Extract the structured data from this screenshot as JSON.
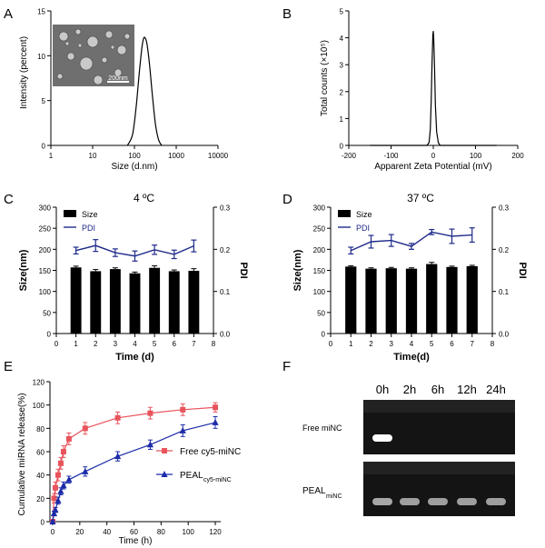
{
  "panels": {
    "A": "A",
    "B": "B",
    "C": "C",
    "D": "D",
    "E": "E",
    "F": "F"
  },
  "colors": {
    "navy": "#1f2a8a",
    "red": "#e8545c",
    "blue": "#1c2ba8",
    "bar": "#000000",
    "gel_bg": "#141414"
  },
  "inset": {
    "scale_label": "200nm"
  },
  "chart_data": [
    {
      "panel": "A",
      "type": "line",
      "xlabel": "Size (d.nm)",
      "ylabel": "Intensity (percent)",
      "xscale": "log",
      "xlim": [
        1,
        10000
      ],
      "ylim": [
        0,
        15
      ],
      "xticks": [
        1,
        10,
        100,
        1000,
        10000
      ],
      "xtick_labels": [
        "1",
        "10",
        "100",
        "1000",
        "10000"
      ],
      "yticks": [
        0,
        5,
        10,
        15
      ],
      "ytick_labels": [
        "0",
        "5",
        "10",
        "15"
      ],
      "series": [
        {
          "x": [
            68,
            90,
            110,
            130,
            150,
            165,
            180,
            200,
            230,
            270,
            320,
            380,
            450
          ],
          "y": [
            0,
            1.2,
            4.3,
            8.0,
            10.8,
            11.9,
            12.0,
            11.3,
            9.0,
            5.5,
            2.3,
            0.6,
            0
          ]
        }
      ]
    },
    {
      "panel": "B",
      "type": "line",
      "xlabel": "Apparent Zeta Potential (mV)",
      "ylabel": "Total counts (×10⁵)",
      "xlim": [
        -200,
        200
      ],
      "ylim": [
        0,
        5
      ],
      "xticks": [
        -200,
        -100,
        0,
        100,
        200
      ],
      "xtick_labels": [
        "-200",
        "-100",
        "0",
        "100",
        "200"
      ],
      "yticks": [
        0,
        1,
        2,
        3,
        4,
        5
      ],
      "ytick_labels": [
        "0",
        "1",
        "2",
        "3",
        "4",
        "5"
      ],
      "series": [
        {
          "x": [
            -150,
            -15,
            -10,
            -7,
            -5,
            -3,
            -1,
            0,
            1,
            3,
            5,
            8,
            12,
            16,
            150
          ],
          "y": [
            0,
            0,
            0.1,
            0.6,
            1.6,
            3.0,
            4.1,
            4.25,
            4.0,
            2.9,
            1.5,
            0.5,
            0.1,
            0,
            0
          ]
        }
      ]
    },
    {
      "panel": "C",
      "type": "bar",
      "title": "4 ºC",
      "xlabel": "Time (d)",
      "ylabel": "Size(nm)",
      "y2label": "PDI",
      "xlim": [
        0,
        8
      ],
      "ylim": [
        0,
        300
      ],
      "y2lim": [
        0,
        0.3
      ],
      "xticks": [
        0,
        1,
        2,
        3,
        4,
        5,
        6,
        7,
        8
      ],
      "xtick_labels": [
        "0",
        "1",
        "2",
        "3",
        "4",
        "5",
        "6",
        "7",
        "8"
      ],
      "yticks": [
        0,
        50,
        100,
        150,
        200,
        250,
        300
      ],
      "ytick_labels": [
        "0",
        "50",
        "100",
        "150",
        "200",
        "250",
        "300"
      ],
      "y2ticks": [
        0,
        0.1,
        0.2,
        0.3
      ],
      "y2tick_labels": [
        "0.0",
        "0.1",
        "0.2",
        "0.3"
      ],
      "legend": [
        "Size",
        "PDI"
      ],
      "x": [
        1,
        2,
        3,
        4,
        5,
        6,
        7
      ],
      "size": [
        157,
        148,
        153,
        143,
        156,
        148,
        149
      ],
      "size_err": [
        3,
        4,
        3,
        3,
        5,
        3,
        5
      ],
      "pdi": [
        0.197,
        0.209,
        0.192,
        0.184,
        0.199,
        0.188,
        0.208
      ],
      "pdi_err": [
        0.008,
        0.014,
        0.009,
        0.012,
        0.011,
        0.01,
        0.014
      ]
    },
    {
      "panel": "D",
      "type": "bar",
      "title": "37 ºC",
      "xlabel": "Time(d)",
      "ylabel": "Size(nm)",
      "y2label": "PDI",
      "xlim": [
        0,
        8
      ],
      "ylim": [
        0,
        300
      ],
      "y2lim": [
        0,
        0.3
      ],
      "xticks": [
        0,
        1,
        2,
        3,
        4,
        5,
        6,
        7,
        8
      ],
      "xtick_labels": [
        "0",
        "1",
        "2",
        "3",
        "4",
        "5",
        "6",
        "7",
        "8"
      ],
      "yticks": [
        0,
        50,
        100,
        150,
        200,
        250,
        300
      ],
      "ytick_labels": [
        "0",
        "50",
        "100",
        "150",
        "200",
        "250",
        "300"
      ],
      "y2ticks": [
        0,
        0.1,
        0.2,
        0.3
      ],
      "y2tick_labels": [
        "0.0",
        "0.1",
        "0.2",
        "0.3"
      ],
      "legend": [
        "Size",
        "PDI"
      ],
      "x": [
        1,
        2,
        3,
        4,
        5,
        6,
        7
      ],
      "size": [
        159,
        154,
        155,
        154,
        165,
        158,
        160
      ],
      "size_err": [
        2,
        2,
        2,
        2,
        4,
        2,
        2
      ],
      "pdi": [
        0.197,
        0.218,
        0.221,
        0.207,
        0.241,
        0.231,
        0.234
      ],
      "pdi_err": [
        0.008,
        0.015,
        0.014,
        0.007,
        0.006,
        0.017,
        0.017
      ]
    },
    {
      "panel": "E",
      "type": "line",
      "xlabel": "Time (h)",
      "ylabel": "Cumulative miRNA release(%)",
      "xlim": [
        -2,
        124
      ],
      "ylim": [
        0,
        120
      ],
      "xticks": [
        0,
        20,
        40,
        60,
        80,
        100,
        120
      ],
      "xtick_labels": [
        "0",
        "20",
        "40",
        "60",
        "80",
        "100",
        "120"
      ],
      "yticks": [
        0,
        20,
        40,
        60,
        80,
        100,
        120
      ],
      "ytick_labels": [
        "0",
        "20",
        "40",
        "60",
        "80",
        "100",
        "120"
      ],
      "series": [
        {
          "name": "Free  cy5-miNC",
          "marker": "square",
          "color": "#e8545c",
          "x": [
            0,
            1,
            2,
            4,
            6,
            8,
            12,
            24,
            48,
            72,
            96,
            120
          ],
          "y": [
            0,
            20,
            29,
            40,
            50,
            60,
            71,
            80,
            89,
            93,
            96,
            98
          ],
          "err": [
            1,
            4,
            5,
            5,
            5,
            5,
            5,
            5,
            5,
            5,
            5,
            4
          ]
        },
        {
          "name_main": "PEAL",
          "name_sub": "cy5-miNC",
          "marker": "triangle",
          "color": "#1c2ba8",
          "x": [
            0,
            1,
            2,
            4,
            6,
            8,
            12,
            24,
            48,
            72,
            96,
            120
          ],
          "y": [
            0,
            7,
            10,
            18,
            26,
            31,
            36,
            43,
            56,
            66,
            78,
            85
          ],
          "err": [
            1,
            2,
            2,
            3,
            3,
            3,
            3,
            4,
            4,
            4,
            5,
            5
          ]
        }
      ]
    }
  ],
  "gel": {
    "lanes": [
      "0h",
      "2h",
      "6h",
      "12h",
      "24h"
    ],
    "rows": [
      {
        "label": "Free miNC",
        "band_intensity": [
          1.0,
          0.0,
          0.0,
          0.0,
          0.0
        ]
      },
      {
        "label_main": "PEAL",
        "label_sub": "miNC",
        "band_intensity": [
          0.55,
          0.5,
          0.5,
          0.5,
          0.5
        ]
      }
    ]
  }
}
